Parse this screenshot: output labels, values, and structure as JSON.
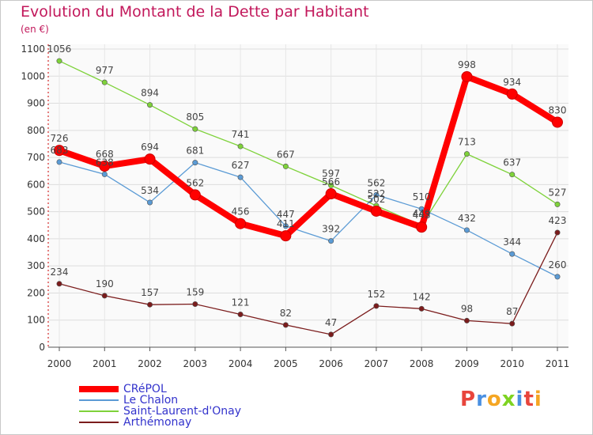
{
  "title": "Evolution du Montant de la Dette par Habitant",
  "subtitle": "(en €)",
  "logo": "Proxiti",
  "chart_data": {
    "type": "line",
    "title": "Evolution du Montant de la Dette par Habitant",
    "subtitle": "(en €)",
    "x": [
      "2000",
      "2001",
      "2002",
      "2003",
      "2004",
      "2005",
      "2006",
      "2007",
      "2008",
      "2009",
      "2010",
      "2011"
    ],
    "ylim": [
      0,
      1100
    ],
    "yticks": [
      0,
      100,
      200,
      300,
      400,
      500,
      600,
      700,
      800,
      900,
      1000,
      1100
    ],
    "grid": true,
    "legend_position": "bottom-left",
    "series": [
      {
        "name": "CRéPOL",
        "color": "#ff0000",
        "values": [
          726,
          668,
          694,
          562,
          456,
          411,
          566,
          502,
          443,
          998,
          934,
          830
        ],
        "labels": [
          "726",
          "668",
          "694",
          "562",
          "456",
          "411",
          "566",
          "502",
          "443",
          "998",
          "934",
          "830"
        ]
      },
      {
        "name": "Le Chalon",
        "color": "#5b9bd5",
        "values": [
          683,
          638,
          534,
          681,
          627,
          447,
          392,
          562,
          510,
          432,
          344,
          260
        ],
        "labels": [
          "683",
          "638",
          "534",
          "681",
          "627",
          "447",
          "392",
          "562",
          "510",
          "432",
          "344",
          "260"
        ]
      },
      {
        "name": "Saint-Laurent-d'Onay",
        "color": "#7ed23a",
        "values": [
          1056,
          977,
          894,
          805,
          741,
          667,
          597,
          522,
          449,
          713,
          637,
          527
        ],
        "labels": [
          "1056",
          "977",
          "894",
          "805",
          "741",
          "667",
          "597",
          "522",
          "449",
          "713",
          "637",
          "527"
        ]
      },
      {
        "name": "Arthémonay",
        "color": "#7b1c1c",
        "values": [
          234,
          190,
          157,
          159,
          121,
          82,
          47,
          152,
          142,
          98,
          87,
          423
        ],
        "labels": [
          "234",
          "190",
          "157",
          "159",
          "121",
          "82",
          "47",
          "152",
          "142",
          "98",
          "87",
          "423"
        ]
      }
    ]
  },
  "legend": [
    {
      "label": "CRéPOL",
      "color": "#ff0000"
    },
    {
      "label": "Le Chalon",
      "color": "#5b9bd5"
    },
    {
      "label": "Saint-Laurent-d'Onay",
      "color": "#7ed23a"
    },
    {
      "label": "Arthémonay",
      "color": "#7b1c1c"
    }
  ],
  "logo_colors": [
    "#e8453c",
    "#4a90e2",
    "#f5a623",
    "#7ed321",
    "#4a90e2",
    "#e8453c",
    "#f5a623"
  ]
}
